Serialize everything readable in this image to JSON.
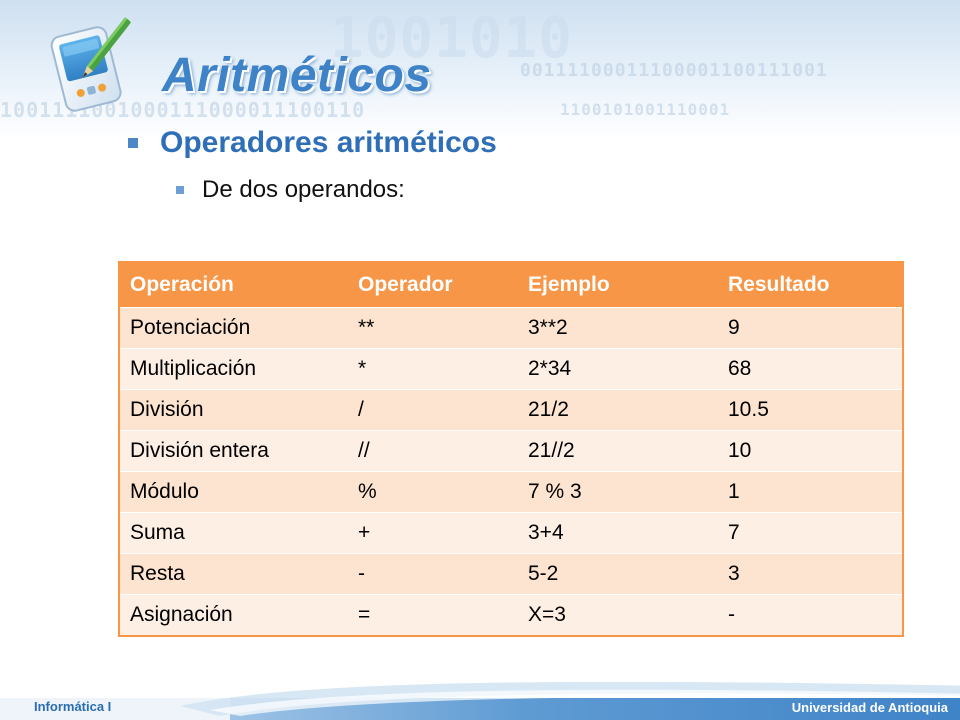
{
  "slide": {
    "title": "Aritméticos",
    "bullet_level1": "Operadores aritméticos",
    "bullet_level2": "De dos operandos:"
  },
  "table": {
    "headers": [
      "Operación",
      "Operador",
      "Ejemplo",
      "Resultado"
    ],
    "rows": [
      [
        "Potenciación",
        "**",
        "3**2",
        "9"
      ],
      [
        "Multiplicación",
        "*",
        "2*34",
        "68"
      ],
      [
        "División",
        "/",
        "21/2",
        "10.5"
      ],
      [
        "División entera",
        "//",
        "21//2",
        "10"
      ],
      [
        "Módulo",
        "%",
        "7 % 3",
        "1"
      ],
      [
        "Suma",
        "+",
        "3+4",
        "7"
      ],
      [
        "Resta",
        "-",
        "5-2",
        "3"
      ],
      [
        "Asignación",
        "=",
        "X=3",
        "-"
      ]
    ]
  },
  "footer": {
    "left": "Informática I",
    "right": "Universidad de Antioquia"
  },
  "colors": {
    "title": "#3e82c8",
    "header_bg": "#f79646",
    "row_odd": "#fde4d0",
    "row_even": "#feefe5",
    "footer": "#3f83c8"
  },
  "icons": {
    "logo": "pda-pen-icon",
    "bullet": "square-bullet-icon"
  }
}
